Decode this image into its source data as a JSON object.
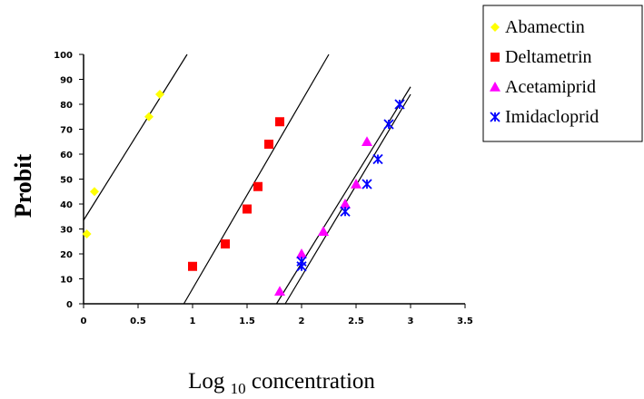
{
  "chart_data": {
    "type": "scatter",
    "title": "",
    "xlabel_main": "Log ",
    "xlabel_sub": "10",
    "xlabel_rest": " concentration",
    "ylabel": "Probit",
    "xlim": [
      0,
      3.5
    ],
    "ylim": [
      0,
      100
    ],
    "x_ticks": [
      "0",
      "0.5",
      "1",
      "1.5",
      "2",
      "2.5",
      "3",
      "3.5"
    ],
    "y_ticks": [
      "0",
      "10",
      "20",
      "30",
      "40",
      "50",
      "60",
      "70",
      "80",
      "90",
      "100"
    ],
    "grid": false,
    "legend_position": "top-right",
    "series": [
      {
        "name": "Abamectin",
        "marker": "diamond",
        "color": "#ffff00",
        "points": [
          [
            0.03,
            28
          ],
          [
            0.1,
            45
          ],
          [
            0.6,
            75
          ],
          [
            0.7,
            84
          ]
        ],
        "fit_line": [
          [
            0.0,
            33.5
          ],
          [
            0.95,
            100
          ]
        ]
      },
      {
        "name": "Deltametrin",
        "marker": "square",
        "color": "#ff0000",
        "points": [
          [
            1.0,
            15
          ],
          [
            1.3,
            24
          ],
          [
            1.5,
            38
          ],
          [
            1.6,
            47
          ],
          [
            1.7,
            64
          ],
          [
            1.8,
            73
          ]
        ],
        "fit_line": [
          [
            0.92,
            0
          ],
          [
            2.25,
            100
          ]
        ]
      },
      {
        "name": "Acetamiprid",
        "marker": "triangle",
        "color": "#ff00ff",
        "points": [
          [
            1.8,
            5
          ],
          [
            2.0,
            20
          ],
          [
            2.2,
            29
          ],
          [
            2.4,
            40
          ],
          [
            2.5,
            48
          ],
          [
            2.6,
            65
          ]
        ],
        "fit_line": [
          [
            1.77,
            0
          ],
          [
            3.0,
            87
          ]
        ]
      },
      {
        "name": "Imidacloprid",
        "marker": "star",
        "color": "#0000ff",
        "points": [
          [
            2.0,
            15
          ],
          [
            2.0,
            17
          ],
          [
            2.4,
            37
          ],
          [
            2.6,
            48
          ],
          [
            2.7,
            58
          ],
          [
            2.8,
            72
          ],
          [
            2.9,
            80
          ]
        ],
        "fit_line": [
          [
            1.85,
            0
          ],
          [
            3.0,
            84
          ]
        ]
      }
    ]
  }
}
